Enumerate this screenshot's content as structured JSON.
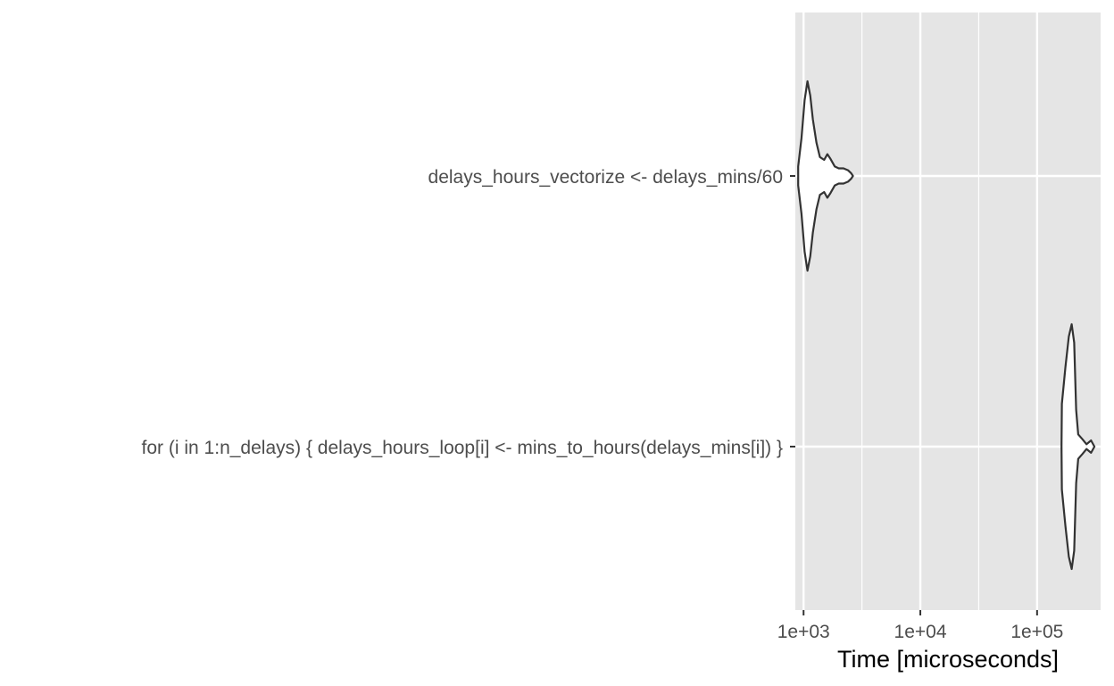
{
  "chart_data": {
    "type": "violin",
    "orientation": "horizontal",
    "xlabel": "Time [microseconds]",
    "x_scale": "log10",
    "xlim": [
      850,
      350000
    ],
    "x_ticks": [
      1000,
      10000,
      100000
    ],
    "x_tick_labels": [
      "1e+03",
      "1e+04",
      "1e+05"
    ],
    "categories": [
      "delays_hours_vectorize <- delays_mins/60",
      "for (i in 1:n_delays) {     delays_hours_loop[i] <- mins_to_hours(delays_mins[i]) }"
    ],
    "violins": [
      {
        "category": "delays_hours_vectorize <- delays_mins/60",
        "profile": [
          [
            900,
            0.1
          ],
          [
            960,
            0.4
          ],
          [
            1020,
            0.8
          ],
          [
            1080,
            1.0
          ],
          [
            1140,
            0.85
          ],
          [
            1200,
            0.6
          ],
          [
            1290,
            0.35
          ],
          [
            1380,
            0.2
          ],
          [
            1500,
            0.17
          ],
          [
            1600,
            0.23
          ],
          [
            1700,
            0.18
          ],
          [
            1850,
            0.1
          ],
          [
            2000,
            0.08
          ],
          [
            2200,
            0.08
          ],
          [
            2400,
            0.06
          ],
          [
            2550,
            0.03
          ],
          [
            2650,
            0.0
          ]
        ]
      },
      {
        "category": "for (i in 1:n_delays) {     delays_hours_loop[i] <- mins_to_hours(delays_mins[i]) }",
        "profile": [
          [
            162000,
            0.0
          ],
          [
            163000,
            0.35
          ],
          [
            175000,
            0.65
          ],
          [
            187000,
            0.9
          ],
          [
            198000,
            1.0
          ],
          [
            208000,
            0.85
          ],
          [
            216000,
            0.3
          ],
          [
            225000,
            0.1
          ],
          [
            245000,
            0.06
          ],
          [
            265000,
            0.02
          ],
          [
            290000,
            0.05
          ],
          [
            310000,
            0.0
          ]
        ]
      }
    ],
    "colors": {
      "panel_background": "#e5e5e5",
      "grid": "#ffffff",
      "violin_fill": "#ffffff",
      "violin_outline": "#333333",
      "tick_text": "#4d4d4d",
      "title_text": "#000000"
    },
    "grid": true,
    "legend": "none"
  }
}
